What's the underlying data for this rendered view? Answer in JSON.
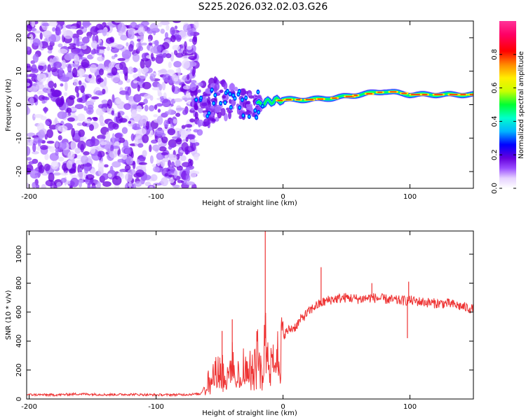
{
  "title": "S225.2026.032.02.03.G26",
  "chart_data": [
    {
      "type": "heatmap",
      "xlabel": "Height of straight line (km)",
      "ylabel": "Frequency (Hz)",
      "xlim": [
        -202,
        150
      ],
      "ylim": [
        -25,
        25
      ],
      "xticks": [
        -200,
        -100,
        0,
        100
      ],
      "yticks": [
        -20,
        -10,
        0,
        10,
        20
      ],
      "colorbar": {
        "label": "Normalized spectral amplitude",
        "range": [
          0,
          1
        ],
        "ticks": [
          0.0,
          0.2,
          0.4,
          0.6,
          0.8
        ],
        "colors": [
          "#ffffff",
          "#e6d2ff",
          "#9a4dff",
          "#6600dd",
          "#0000ff",
          "#00b4ff",
          "#00ffcc",
          "#00ff33",
          "#c8ff00",
          "#ffee00",
          "#ff8800",
          "#ff0000",
          "#ff0066",
          "#ff3399"
        ]
      },
      "ridge": {
        "x": [
          -70,
          -60,
          -50,
          -40,
          -30,
          -20,
          -10,
          0,
          20,
          40,
          60,
          80,
          100,
          120,
          150
        ],
        "freq": [
          -2,
          0,
          2,
          1,
          0,
          0,
          1,
          1.5,
          1.5,
          2,
          3,
          4,
          3,
          3,
          3
        ]
      }
    },
    {
      "type": "line",
      "xlabel": "Height of straight line (km)",
      "ylabel": "SNR (10 * v/v)",
      "xlim": [
        -202,
        150
      ],
      "ylim": [
        0,
        1160
      ],
      "xticks": [
        -200,
        -100,
        0,
        100
      ],
      "yticks": [
        0,
        200,
        400,
        600,
        800,
        1000
      ],
      "color": "#ee3333",
      "series": [
        {
          "name": "SNR",
          "x": [
            -202,
            -180,
            -160,
            -140,
            -120,
            -100,
            -80,
            -65,
            -58,
            -52,
            -48,
            -44,
            -40,
            -36,
            -32,
            -28,
            -24,
            -20,
            -16,
            -14,
            -12,
            -10,
            -8,
            -5,
            0,
            5,
            10,
            15,
            20,
            25,
            30,
            35,
            40,
            50,
            60,
            70,
            80,
            90,
            100,
            110,
            120,
            130,
            140,
            150
          ],
          "y": [
            30,
            28,
            35,
            30,
            32,
            28,
            30,
            35,
            150,
            200,
            240,
            140,
            260,
            180,
            220,
            260,
            200,
            330,
            220,
            420,
            300,
            370,
            330,
            350,
            440,
            480,
            500,
            560,
            600,
            640,
            660,
            680,
            690,
            700,
            690,
            700,
            690,
            680,
            680,
            670,
            660,
            660,
            640,
            620
          ]
        }
      ],
      "spikes": [
        {
          "x": -14,
          "y": 1160
        },
        {
          "x": -48,
          "y": 470
        },
        {
          "x": -40,
          "y": 550
        },
        {
          "x": 30,
          "y": 910
        },
        {
          "x": 70,
          "y": 800
        },
        {
          "x": 99,
          "y": 810
        },
        {
          "x": 98,
          "y": 420
        }
      ]
    }
  ]
}
